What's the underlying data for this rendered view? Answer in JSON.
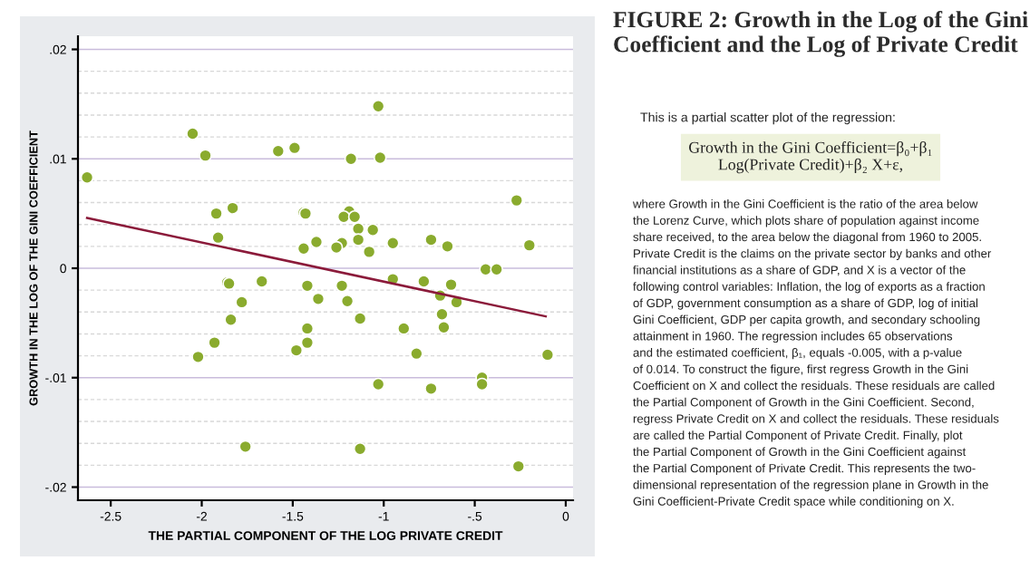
{
  "chart_data": {
    "type": "scatter",
    "title": "FIGURE 2: Growth in the Log of the Gini Coefficient and the Log of Private Credit",
    "xlabel": "THE PARTIAL COMPONENT OF THE LOG PRIVATE CREDIT",
    "ylabel": "GROWTH IN THE LOG OF THE GINI COEFFICIENT",
    "annotations": [
      "This is a partial scatter plot of the regression:",
      "Growth in the Gini Coefficient=β₀+β₁\nLog(Private Credit)+β₂ X+ε,",
      "where Growth in the Gini Coefficient is the ratio of the area below\nthe Lorenz Curve, which plots share of population against income\nshare received, to the area below the diagonal from 1960 to 2005.\nPrivate Credit is the claims on the private sector by banks and other\nfinancial institutions as a share of GDP, and X is a vector of the\nfollowing control variables: Inflation, the log of exports as a fraction\nof GDP, government consumption as a share of GDP, log of initial\nGini Coefficient, GDP per capita growth, and secondary schooling\nattainment in 1960. The regression includes 65 observations\nand the estimated coefficient, β₁, equals -0.005, with a p-value\nof 0.014. To construct the figure, first regress Growth in the Gini\nCoefficient on X and collect the residuals. These residuals are called\nthe Partial Component of Growth in the Gini Coefficient. Second,\nregress Private Credit on X and collect the residuals. These residuals\nare called the Partial Component of Private Credit. Finally, plot\nthe Partial Component of Growth in the Gini Coefficient against\nthe Partial Component of Private Credit. This represents the two-\ndimensional representation of the regression plane in Growth in the\nGini Coefficient-Private Credit space while conditioning on X."
    ],
    "xlim": [
      -2.68,
      0.04
    ],
    "ylim": [
      -0.0212,
      0.0212
    ],
    "xticks": [
      {
        "value": -2.5,
        "label": "-2.5"
      },
      {
        "value": -2,
        "label": "-2"
      },
      {
        "value": -1.5,
        "label": "-1.5"
      },
      {
        "value": -1,
        "label": "-1"
      },
      {
        "value": -0.5,
        "label": "-.5"
      },
      {
        "value": 0,
        "label": "0"
      }
    ],
    "yticks": [
      {
        "value": -0.02,
        "label": "-.02"
      },
      {
        "value": -0.018,
        "label": null
      },
      {
        "value": -0.016,
        "label": null
      },
      {
        "value": -0.014,
        "label": null
      },
      {
        "value": -0.012,
        "label": null
      },
      {
        "value": -0.01,
        "label": "-.01"
      },
      {
        "value": -0.008,
        "label": null
      },
      {
        "value": -0.006,
        "label": null
      },
      {
        "value": -0.004,
        "label": null
      },
      {
        "value": -0.002,
        "label": null
      },
      {
        "value": 0,
        "label": "0"
      },
      {
        "value": 0.002,
        "label": null
      },
      {
        "value": 0.004,
        "label": null
      },
      {
        "value": 0.006,
        "label": null
      },
      {
        "value": 0.008,
        "label": null
      },
      {
        "value": 0.01,
        "label": ".01"
      },
      {
        "value": 0.012,
        "label": null
      },
      {
        "value": 0.014,
        "label": null
      },
      {
        "value": 0.016,
        "label": null
      },
      {
        "value": 0.018,
        "label": null
      },
      {
        "value": 0.02,
        "label": ".02"
      }
    ],
    "grid": "y",
    "marker": "circle",
    "series": [
      {
        "color": "#8aab2e",
        "x": [
          -2.63,
          -2.05,
          -1.98,
          -1.92,
          -1.83,
          -1.91,
          -1.58,
          -1.49,
          -1.44,
          -1.43,
          -1.44,
          -1.37,
          -1.18,
          -1.03,
          -1.02,
          -1.19,
          -1.22,
          -1.16,
          -1.14,
          -1.06,
          -1.14,
          -1.23,
          -1.26,
          -1.08,
          -0.95,
          -0.74,
          -0.65,
          -0.44,
          -0.38,
          -0.27,
          -0.2,
          -1.86,
          -1.85,
          -1.67,
          -1.42,
          -1.23,
          -0.95,
          -0.78,
          -0.63,
          -1.36,
          -1.2,
          -0.69,
          -0.6,
          -1.78,
          -1.84,
          -1.13,
          -0.68,
          -1.42,
          -0.89,
          -0.67,
          -1.93,
          -1.42,
          -1.48,
          -2.02,
          -0.82,
          -0.1,
          -1.03,
          -0.74,
          -0.46,
          -0.46,
          -1.76,
          -1.13,
          -0.26
        ],
        "values": [
          0.0083,
          0.0123,
          0.0103,
          0.005,
          0.0055,
          0.0028,
          0.0107,
          0.011,
          0.0051,
          0.005,
          0.0018,
          0.0024,
          0.01,
          0.0148,
          0.0101,
          0.0052,
          0.0047,
          0.0047,
          0.0036,
          0.0035,
          0.0026,
          0.0023,
          0.0019,
          0.0015,
          0.0023,
          0.0026,
          0.002,
          -0.0001,
          -0.0001,
          0.0062,
          0.0021,
          -0.0013,
          -0.0014,
          -0.0012,
          -0.0016,
          -0.0016,
          -0.001,
          -0.0012,
          -0.0015,
          -0.0028,
          -0.003,
          -0.0025,
          -0.0031,
          -0.0031,
          -0.0047,
          -0.0046,
          -0.0042,
          -0.0055,
          -0.0055,
          -0.0054,
          -0.0068,
          -0.0068,
          -0.0075,
          -0.0081,
          -0.0078,
          -0.0079,
          -0.0106,
          -0.011,
          -0.01,
          -0.0106,
          -0.0163,
          -0.0165,
          -0.0181
        ]
      },
      {
        "type": "line",
        "color": "#8b1a3a",
        "marker": "none",
        "x": [
          -2.63,
          -0.11
        ],
        "values": [
          0.0046,
          -0.0044
        ]
      }
    ]
  }
}
